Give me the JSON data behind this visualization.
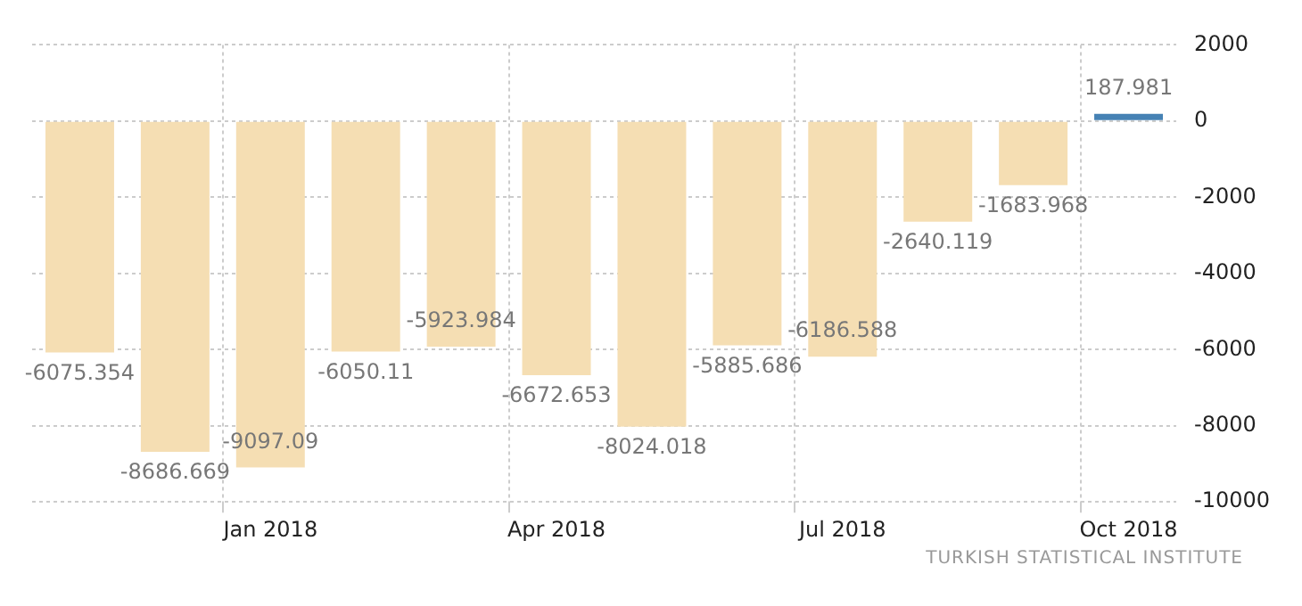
{
  "chart_data": {
    "type": "bar",
    "categories": [
      null,
      null,
      "Jan 2018",
      null,
      null,
      "Apr 2018",
      null,
      null,
      "Jul 2018",
      null,
      null,
      "Oct 2018"
    ],
    "values": [
      -6075.354,
      -8686.669,
      -9097.09,
      -6050.11,
      -5923.984,
      -6672.653,
      -8024.018,
      -5885.686,
      -6186.588,
      -2640.119,
      -1683.968,
      187.981
    ],
    "colors": [
      "#f5deb3",
      "#f5deb3",
      "#f5deb3",
      "#f5deb3",
      "#f5deb3",
      "#f5deb3",
      "#f5deb3",
      "#f5deb3",
      "#f5deb3",
      "#f5deb3",
      "#f5deb3",
      "#4682b4"
    ],
    "ylim": [
      -10000,
      2000
    ],
    "yticks": [
      2000,
      0,
      -2000,
      -4000,
      -6000,
      -8000,
      -10000
    ],
    "grid": true,
    "legend": false,
    "data_labels": true,
    "annotations": [
      "TURKISH STATISTICAL INSTITUTE"
    ]
  }
}
